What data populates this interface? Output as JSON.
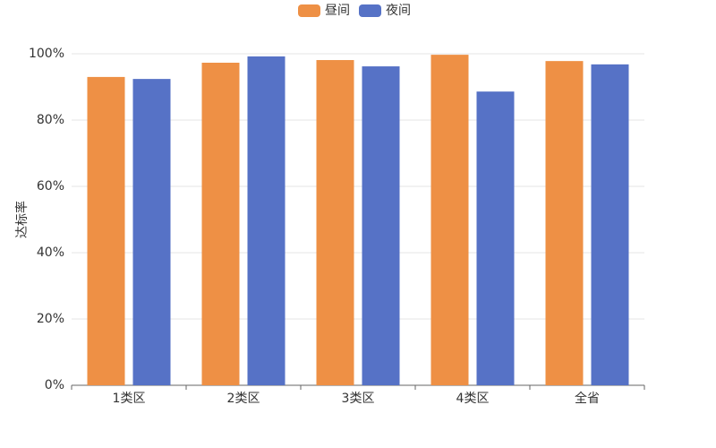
{
  "chart_data": {
    "type": "bar",
    "y_label": "达标率",
    "categories": [
      "1类区",
      "2类区",
      "3类区",
      "4类区",
      "全省"
    ],
    "series": [
      {
        "name": "昼间",
        "color": "#ee9045",
        "values": [
          93.0,
          97.3,
          98.1,
          99.7,
          97.8
        ]
      },
      {
        "name": "夜间",
        "color": "#5672c6",
        "values": [
          92.4,
          99.2,
          96.2,
          88.6,
          96.8
        ]
      }
    ],
    "ylim": [
      0,
      100
    ],
    "yticks": [
      {
        "value": 0,
        "label": "0%"
      },
      {
        "value": 20,
        "label": "20%"
      },
      {
        "value": 40,
        "label": "40%"
      },
      {
        "value": 60,
        "label": "60%"
      },
      {
        "value": 80,
        "label": "80%"
      },
      {
        "value": 100,
        "label": "100%"
      }
    ],
    "grid": true
  }
}
